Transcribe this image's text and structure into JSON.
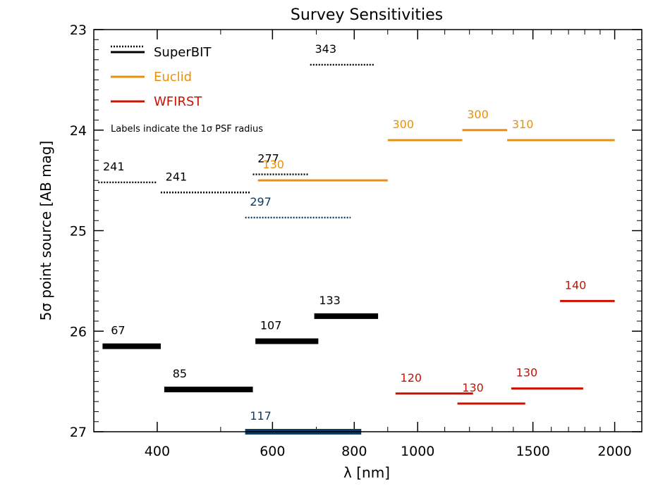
{
  "chart_data": {
    "type": "line",
    "title": "Survey Sensitivities",
    "xlabel": "λ [nm]",
    "ylabel": "5σ point source [AB mag]",
    "x_scale": "log",
    "xlim": [
      320,
      2200
    ],
    "ylim": [
      27.0,
      23.0
    ],
    "y_inverted": true,
    "x_ticks": [
      {
        "value": 400,
        "label": "400"
      },
      {
        "value": 600,
        "label": "600"
      },
      {
        "value": 800,
        "label": "800"
      },
      {
        "value": 1000,
        "label": "1000"
      },
      {
        "value": 1500,
        "label": "1500"
      },
      {
        "value": 2000,
        "label": "2000"
      }
    ],
    "y_ticks": [
      {
        "value": 23,
        "label": "23"
      },
      {
        "value": 24,
        "label": "24"
      },
      {
        "value": 25,
        "label": "25"
      },
      {
        "value": 26,
        "label": "26"
      },
      {
        "value": 27,
        "label": "27"
      }
    ],
    "annotation": "Labels indicate the 1σ PSF radius",
    "legend": {
      "placement": "top-left",
      "entries": [
        {
          "name": "SuperBIT",
          "color": "#000000",
          "style": "solid+dotted"
        },
        {
          "name": "Euclid",
          "color": "#E8900C",
          "style": "solid"
        },
        {
          "name": "WFIRST",
          "color": "#CC1100",
          "style": "solid"
        }
      ]
    },
    "series": [
      {
        "name": "SuperBIT",
        "color": "#000000",
        "segments": [
          {
            "x1": 330,
            "x2": 405,
            "y": 26.15,
            "label": "67",
            "style": "solid",
            "weight": "thick"
          },
          {
            "x1": 410,
            "x2": 560,
            "y": 26.58,
            "label": "85",
            "style": "solid",
            "weight": "thick"
          },
          {
            "x1": 565,
            "x2": 705,
            "y": 26.1,
            "label": "107",
            "style": "solid",
            "weight": "thick"
          },
          {
            "x1": 695,
            "x2": 870,
            "y": 25.85,
            "label": "133",
            "style": "solid",
            "weight": "thick"
          },
          {
            "x1": 325,
            "x2": 400,
            "y": 24.52,
            "label": "241",
            "style": "dotted",
            "weight": "thin"
          },
          {
            "x1": 405,
            "x2": 555,
            "y": 24.62,
            "label": "241",
            "style": "dotted",
            "weight": "thin"
          },
          {
            "x1": 560,
            "x2": 680,
            "y": 24.44,
            "label": "277",
            "style": "dotted",
            "weight": "thin"
          },
          {
            "x1": 685,
            "x2": 860,
            "y": 23.35,
            "label": "343",
            "style": "dotted",
            "weight": "thin"
          }
        ]
      },
      {
        "name": "SuperBIT (blue band)",
        "color": "#0D3B66",
        "segments": [
          {
            "x1": 545,
            "x2": 820,
            "y": 27.0,
            "label": "117",
            "style": "solid",
            "weight": "thick"
          },
          {
            "x1": 545,
            "x2": 790,
            "y": 24.87,
            "label": "297",
            "style": "dotted",
            "weight": "thin"
          }
        ]
      },
      {
        "name": "Euclid",
        "color": "#E8900C",
        "segments": [
          {
            "x1": 570,
            "x2": 900,
            "y": 24.5,
            "label": "130",
            "style": "solid",
            "weight": "medium"
          },
          {
            "x1": 900,
            "x2": 1170,
            "y": 24.1,
            "label": "300",
            "style": "solid",
            "weight": "medium"
          },
          {
            "x1": 1170,
            "x2": 1370,
            "y": 24.0,
            "label": "300",
            "style": "solid",
            "weight": "medium"
          },
          {
            "x1": 1370,
            "x2": 2000,
            "y": 24.1,
            "label": "310",
            "style": "solid",
            "weight": "medium"
          }
        ]
      },
      {
        "name": "WFIRST",
        "color": "#CC1100",
        "segments": [
          {
            "x1": 925,
            "x2": 1215,
            "y": 26.62,
            "label": "120",
            "style": "solid",
            "weight": "medium"
          },
          {
            "x1": 1150,
            "x2": 1460,
            "y": 26.72,
            "label": "130",
            "style": "solid",
            "weight": "medium"
          },
          {
            "x1": 1390,
            "x2": 1790,
            "y": 26.57,
            "label": "130",
            "style": "solid",
            "weight": "medium"
          },
          {
            "x1": 1650,
            "x2": 2000,
            "y": 25.7,
            "label": "140",
            "style": "solid",
            "weight": "medium"
          }
        ]
      }
    ]
  }
}
